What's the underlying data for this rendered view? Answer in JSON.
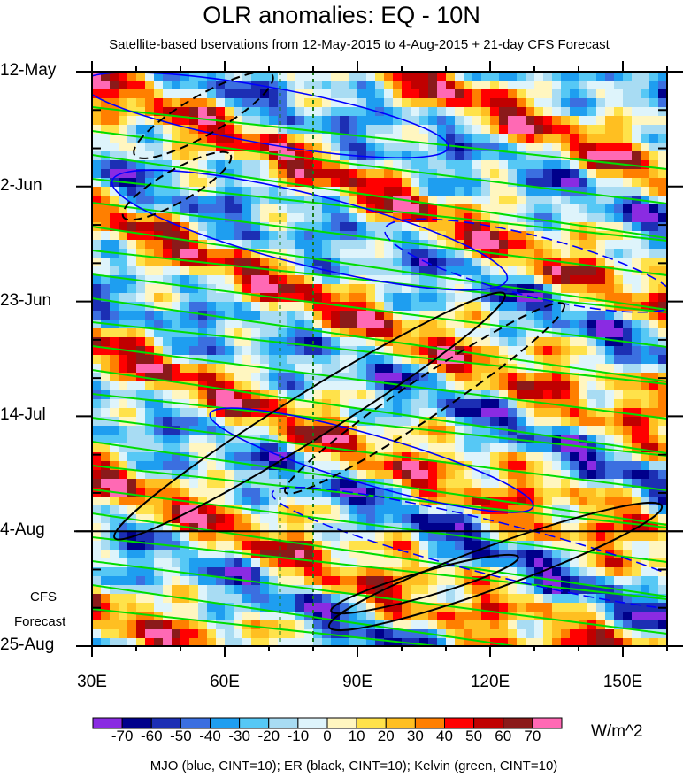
{
  "chart_data": {
    "type": "heatmap",
    "title": "OLR anomalies: EQ - 10N",
    "subtitle": "Satellite-based bservations from 12-May-2015 to 4-Aug-2015 + 21-day CFS Forecast",
    "x_ticks": [
      "30E",
      "60E",
      "90E",
      "120E",
      "150E"
    ],
    "x_tick_values": [
      30,
      60,
      90,
      120,
      150
    ],
    "xlim": [
      30,
      160
    ],
    "y_ticks": [
      "12-May",
      "2-Jun",
      "23-Jun",
      "14-Jul",
      "4-Aug",
      "25-Aug"
    ],
    "y_tick_days": [
      0,
      21,
      42,
      63,
      84,
      105
    ],
    "ylim_days": [
      0,
      105
    ],
    "observation_end": "4-Aug",
    "forecast_label": [
      "CFS",
      "Forecast"
    ],
    "reference_longitudes": [
      72.5,
      80
    ],
    "colorbar": {
      "levels": [
        "-70",
        "-60",
        "-50",
        "-40",
        "-30",
        "-20",
        "-10",
        "0",
        "10",
        "20",
        "30",
        "40",
        "50",
        "60",
        "70"
      ],
      "colors": [
        "#8a2be2",
        "#00008b",
        "#1c2fb4",
        "#3b6fe0",
        "#1e9ef0",
        "#56c8f5",
        "#a8dcf3",
        "#def4fb",
        "#fff6c0",
        "#ffe24a",
        "#ffbf21",
        "#ff7f00",
        "#ff0000",
        "#c00000",
        "#8b1a1a",
        "#ff69b4"
      ],
      "units": "W/m^2"
    },
    "contours_legend": "MJO (blue, CINT=10); ER (black, CINT=10); Kelvin (green, CINT=10)",
    "series_colors": {
      "MJO": "#0000ff",
      "ER": "#000000",
      "Kelvin": "#00dd00"
    }
  }
}
